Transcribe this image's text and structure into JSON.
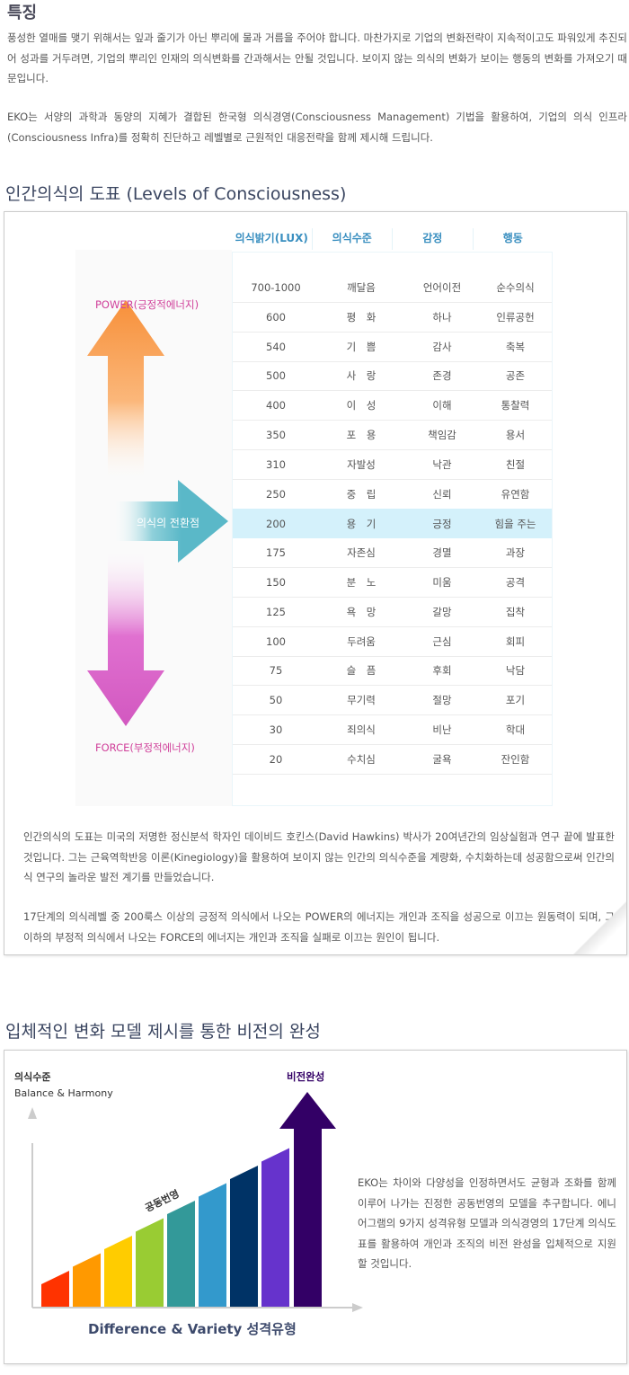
{
  "features": {
    "title": "특징",
    "paragraphs": [
      "풍성한 열매를 맺기 위해서는 잎과 줄기가 아닌 뿌리에 물과 거름을 주어야 합니다. 마찬가지로 기업의 변화전략이 지속적이고도 파워있게 추진되어 성과를 거두려면, 기업의 뿌리인 인재의 의식변화를 간과해서는 안될 것입니다. 보이지 않는 의식의 변화가 보이는 행동의 변화를 가져오기 때문입니다.",
      "EKO는 서양의 과학과 동양의 지혜가 결합된 한국형 의식경영(Consciousness Management) 기법을 활용하여, 기업의 의식 인프라(Consciousness Infra)를 정확히 진단하고 레벨별로 근원적인 대응전략을 함께 제시해 드립니다."
    ]
  },
  "levels": {
    "title": "인간의식의 도표 (Levels of Consciousness)",
    "power_label": "POWER(긍정적에너지)",
    "force_label": "FORCE(부정적에너지)",
    "turning_point_label": "의식의 전환점",
    "colors": {
      "power": "#f7903a",
      "force": "#d258c0",
      "turning": "#5ab8c8",
      "header": "#3a8fc0",
      "highlight": "#d4f1fb"
    },
    "table": {
      "headers": [
        "의식밝기(LUX)",
        "의식수준",
        "감정",
        "행동"
      ],
      "highlight_index": 8,
      "rows": [
        [
          "700-1000",
          "깨달음",
          "언어이전",
          "순수의식"
        ],
        [
          "600",
          "평　화",
          "하나",
          "인류공헌"
        ],
        [
          "540",
          "기　쁨",
          "감사",
          "축복"
        ],
        [
          "500",
          "사　랑",
          "존경",
          "공존"
        ],
        [
          "400",
          "이　성",
          "이해",
          "통찰력"
        ],
        [
          "350",
          "포　용",
          "책임감",
          "용서"
        ],
        [
          "310",
          "자발성",
          "낙관",
          "친절"
        ],
        [
          "250",
          "중　립",
          "신뢰",
          "유연함"
        ],
        [
          "200",
          "용　기",
          "긍정",
          "힘을 주는"
        ],
        [
          "175",
          "자존심",
          "경멸",
          "과장"
        ],
        [
          "150",
          "분　노",
          "미움",
          "공격"
        ],
        [
          "125",
          "욕　망",
          "갈망",
          "집착"
        ],
        [
          "100",
          "두려움",
          "근심",
          "회피"
        ],
        [
          "75",
          "슬　픔",
          "후회",
          "낙담"
        ],
        [
          "50",
          "무기력",
          "절망",
          "포기"
        ],
        [
          "30",
          "죄의식",
          "비난",
          "학대"
        ],
        [
          "20",
          "수치심",
          "굴욕",
          "잔인함"
        ]
      ]
    },
    "paragraphs": [
      "인간의식의 도표는 미국의 저명한 정신분석 학자인 데이비드 호킨스(David Hawkins) 박사가 20여년간의 임상실험과 연구 끝에 발표한 것입니다. 그는 근육역학반응 이론(Kinegiology)을 활용하여 보이지 않는 인간의 의식수준을 계량화, 수치화하는데 성공함으로써 인간의식 연구의 놀라운 발전 계기를 만들었습니다.",
      "17단계의 의식레벨 중 200룩스 이상의 긍정적 의식에서 나오는 POWER의 에너지는 개인과 조직을 성공으로 이끄는 원동력이 되며, 그 이하의 부정적 의식에서 나오는 FORCE의 에너지는 개인과 조직을 실패로 이끄는 원인이 됩니다."
    ]
  },
  "vision": {
    "title": "입체적인 변화 모델 제시를 통한 비전의 완성",
    "y_label": "의식수준",
    "y_sublabel": "Balance & Harmony",
    "arrow_label": "비전완성",
    "slope_label": "공동번영",
    "x_label": "Difference & Variety 성격유형",
    "bar_colors": [
      "#ff3300",
      "#ff9900",
      "#ffcc00",
      "#99cc33",
      "#339999",
      "#3399cc",
      "#003366",
      "#6633cc"
    ],
    "arrow_color": "#330066",
    "description": "EKO는 차이와 다양성을 인정하면서도 균형과 조화를 함께 이루어 나가는 진정한 공동번영의 모델을 추구합니다. 에니어그램의 9가지 성격유형 모델과 의식경영의 17단계 의식도표를 활용하여 개인과 조직의 비전 완성을 입체적으로 지원할 것입니다."
  }
}
